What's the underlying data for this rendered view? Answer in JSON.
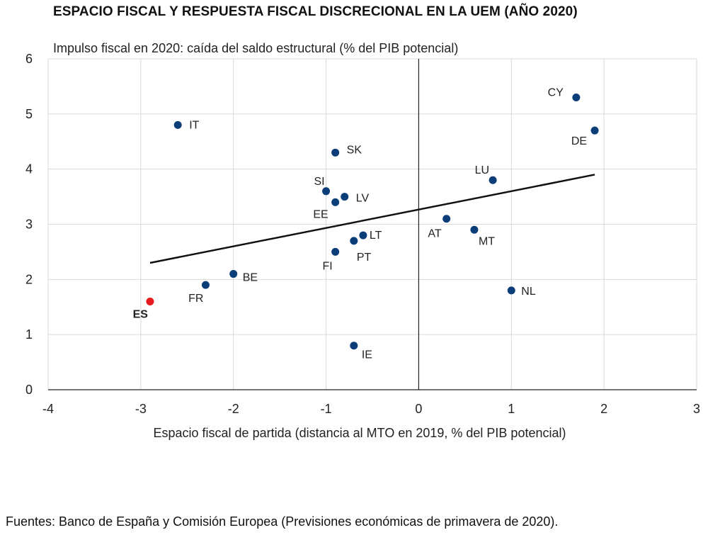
{
  "title": "ESPACIO FISCAL Y RESPUESTA FISCAL DISCRECIONAL EN LA UEM (AÑO 2020)",
  "source": "Fuentes: Banco de España y Comisión Europea (Previsiones económicas de primavera de 2020).",
  "chart_data": {
    "type": "scatter",
    "ylabel": "Impulso fiscal en 2020: caída del saldo estructural (% del PIB potencial)",
    "xlabel": "Espacio fiscal de partida (distancia al MTO en 2019, % del PIB potencial)",
    "xlim": [
      -4,
      3
    ],
    "ylim": [
      0,
      6
    ],
    "x_ticks": [
      "-4",
      "-3",
      "-2",
      "-1",
      "0",
      "1",
      "2",
      "3"
    ],
    "y_ticks": [
      "0",
      "1",
      "2",
      "3",
      "4",
      "5",
      "6"
    ],
    "grid": true,
    "colors": {
      "point": "#0b3d78",
      "highlight": "#e8191c",
      "trend": "#111111",
      "grid": "#d9d9d9",
      "axis": "#222222"
    },
    "points": [
      {
        "label": "CY",
        "x": 1.7,
        "y": 5.3
      },
      {
        "label": "DE",
        "x": 1.9,
        "y": 4.7
      },
      {
        "label": "IT",
        "x": -2.6,
        "y": 4.8
      },
      {
        "label": "SK",
        "x": -0.9,
        "y": 4.3
      },
      {
        "label": "LU",
        "x": 0.8,
        "y": 3.8
      },
      {
        "label": "SI",
        "x": -1.0,
        "y": 3.6
      },
      {
        "label": "LV",
        "x": -0.8,
        "y": 3.5
      },
      {
        "label": "EE",
        "x": -0.9,
        "y": 3.4
      },
      {
        "label": "AT",
        "x": 0.3,
        "y": 3.1
      },
      {
        "label": "MT",
        "x": 0.6,
        "y": 2.9
      },
      {
        "label": "LT",
        "x": -0.6,
        "y": 2.8
      },
      {
        "label": "PT",
        "x": -0.7,
        "y": 2.7
      },
      {
        "label": "FI",
        "x": -0.9,
        "y": 2.5
      },
      {
        "label": "BE",
        "x": -2.0,
        "y": 2.1
      },
      {
        "label": "FR",
        "x": -2.3,
        "y": 1.9
      },
      {
        "label": "NL",
        "x": 1.0,
        "y": 1.8
      },
      {
        "label": "ES",
        "x": -2.9,
        "y": 1.6,
        "highlight": true
      },
      {
        "label": "IE",
        "x": -0.7,
        "y": 0.8
      }
    ],
    "trendline": {
      "x": [
        -2.9,
        1.9
      ],
      "y": [
        2.3,
        3.9
      ]
    }
  }
}
